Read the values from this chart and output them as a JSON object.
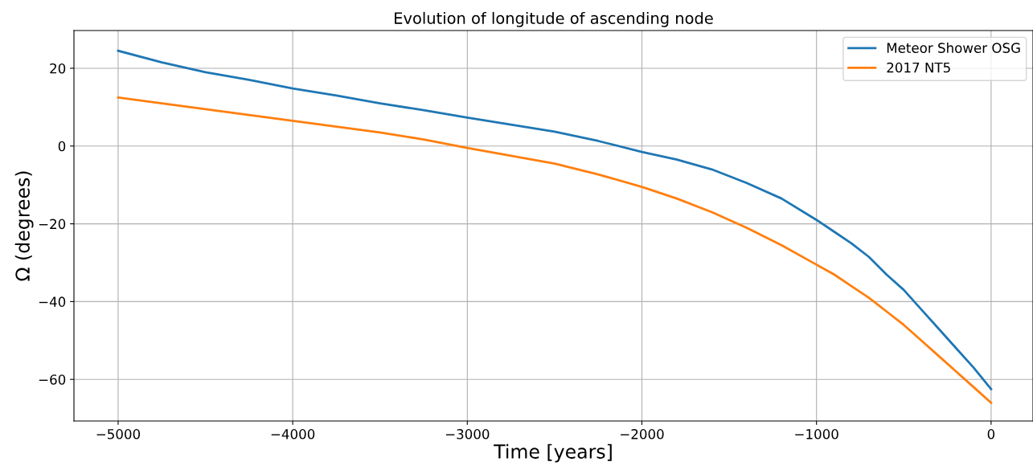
{
  "chart_data": {
    "type": "line",
    "title": "Evolution of longitude of ascending node",
    "xlabel": "Time [years]",
    "ylabel": "Ω (degrees)",
    "x": [
      -5000,
      -4750,
      -4500,
      -4250,
      -4000,
      -3750,
      -3500,
      -3250,
      -3000,
      -2750,
      -2500,
      -2250,
      -2000,
      -1800,
      -1600,
      -1400,
      -1200,
      -1000,
      -900,
      -800,
      -700,
      -600,
      -500,
      -400,
      -300,
      -200,
      -100,
      0
    ],
    "series": [
      {
        "name": "Meteor Shower OSG",
        "color": "#1f77b4",
        "values": [
          24.5,
          21.5,
          19,
          17,
          14.8,
          13,
          11,
          9.2,
          7.3,
          5.5,
          3.7,
          1.3,
          -1.5,
          -3.5,
          -6,
          -9.5,
          -13.5,
          -19,
          -22,
          -25,
          -28.5,
          -33,
          -37,
          -42,
          -47,
          -52,
          -57,
          -62.5
        ]
      },
      {
        "name": "2017 NT5",
        "color": "#ff7f0e",
        "values": [
          12.5,
          11,
          9.5,
          8,
          6.5,
          5,
          3.5,
          1.7,
          -0.5,
          -2.5,
          -4.5,
          -7.3,
          -10.5,
          -13.5,
          -17,
          -21,
          -25.5,
          -30.5,
          -33,
          -36,
          -39,
          -42.5,
          -46,
          -50,
          -54,
          -58,
          -62,
          -66
        ]
      }
    ],
    "xlim": [
      -5253,
      240
    ],
    "ylim": [
      -70.7,
      29.7
    ],
    "xticks": [
      {
        "value": -5000,
        "label": "−5000"
      },
      {
        "value": -4000,
        "label": "−4000"
      },
      {
        "value": -3000,
        "label": "−3000"
      },
      {
        "value": -2000,
        "label": "−2000"
      },
      {
        "value": -1000,
        "label": "−1000"
      },
      0
    ],
    "yticks": [
      {
        "value": -60,
        "label": "−60"
      },
      {
        "value": -40,
        "label": "−40"
      },
      {
        "value": -20,
        "label": "−20"
      },
      0,
      20
    ],
    "grid": true,
    "legend": "top right"
  }
}
